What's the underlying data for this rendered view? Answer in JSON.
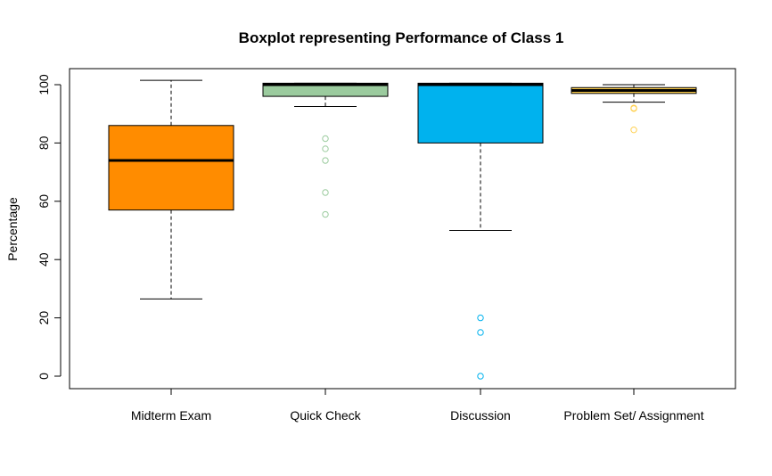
{
  "chart_data": {
    "type": "box",
    "title": "Boxplot representing Performance of Class 1",
    "xlabel": "",
    "ylabel": "Percentage",
    "ylim": [
      -4,
      105
    ],
    "yticks": [
      0,
      20,
      40,
      60,
      80,
      100
    ],
    "grid": false,
    "legend": "none",
    "categories": [
      "Midterm Exam",
      "Quick Check",
      "Discussion",
      "Problem Set/ Assignment"
    ],
    "series": [
      {
        "category": "Midterm Exam",
        "color": "#FF8C00",
        "whisker_low": 26.5,
        "q1": 57,
        "median": 74,
        "q3": 86,
        "whisker_high": 101.5,
        "outliers": []
      },
      {
        "category": "Quick Check",
        "color": "#9BCB9E",
        "whisker_low": 92.5,
        "q1": 96,
        "median": 100,
        "q3": 100.5,
        "whisker_high": 100.5,
        "outliers": [
          81.5,
          78,
          74,
          63,
          55.5
        ]
      },
      {
        "category": "Discussion",
        "color": "#00B2EE",
        "whisker_low": 50,
        "q1": 80,
        "median": 100,
        "q3": 100.5,
        "whisker_high": 100.5,
        "outliers": [
          20,
          15,
          0
        ]
      },
      {
        "category": "Problem Set/ Assignment",
        "color": "#FFD04F",
        "whisker_low": 94,
        "q1": 97,
        "median": 98,
        "q3": 99,
        "whisker_high": 100,
        "outliers": [
          92,
          91.8,
          84.5
        ]
      }
    ]
  }
}
